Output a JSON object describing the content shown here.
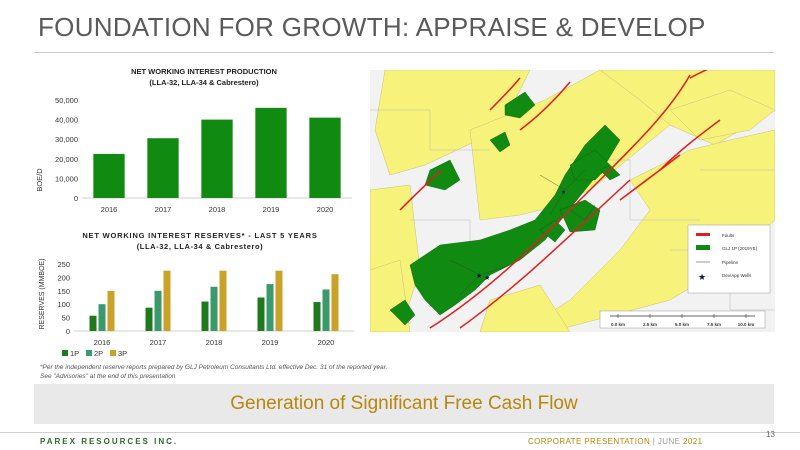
{
  "page": {
    "title": "FOUNDATION FOR GROWTH: APPRAISE & DEVELOP",
    "footnote_line1": "*Per the independent reserve reports prepared by GLJ Petroleum Consultants Ltd. effective Dec. 31 of the reported year.",
    "footnote_line2": "See \"Advisories\" at the end of this presentation",
    "banner": "Generation of Significant Free Cash Flow",
    "brand": "PAREX RESOURCES INC.",
    "corp_label": "CORPORATE PRESENTATION",
    "corp_sep": "|",
    "corp_month": "JUNE",
    "corp_year": "2021",
    "page_number": "13"
  },
  "colors": {
    "production_bar": "#118a11",
    "reserves_1p": "#1d7a1d",
    "reserves_2p": "#3a9a6e",
    "reserves_3p": "#c9a227",
    "banner_text": "#b8860b"
  },
  "chart_data": [
    {
      "type": "bar",
      "title": "NET WORKING INTEREST PRODUCTION",
      "subtitle": "(LLA-32, LLA-34 & Cabrestero)",
      "ylabel": "BOE/D",
      "categories": [
        "2016",
        "2017",
        "2018",
        "2019",
        "2020"
      ],
      "values": [
        22500,
        30500,
        40000,
        46000,
        41000
      ],
      "ylim": [
        0,
        50000
      ],
      "yticks": [
        "0",
        "10,000",
        "20,000",
        "30,000",
        "40,000",
        "50,000"
      ],
      "grid": false
    },
    {
      "type": "bar",
      "title": "NET WORKING INTEREST RESERVES* - LAST 5 YEARS",
      "subtitle": "(LLA-32, LLA-34 & Cabrestero)",
      "ylabel": "RESERVES (MMBOE)",
      "categories": [
        "2016",
        "2017",
        "2018",
        "2019",
        "2020"
      ],
      "series": [
        {
          "name": "1P",
          "values": [
            57,
            87,
            110,
            125,
            108
          ]
        },
        {
          "name": "2P",
          "values": [
            100,
            150,
            165,
            175,
            155
          ]
        },
        {
          "name": "3P",
          "values": [
            150,
            225,
            225,
            225,
            212
          ]
        }
      ],
      "ylim": [
        0,
        250
      ],
      "yticks": [
        "0",
        "50",
        "100",
        "150",
        "200",
        "250"
      ],
      "legend": "bottom-left",
      "grid": false
    }
  ],
  "map": {
    "legend": {
      "faults": "Faults",
      "glj": "GLJ 1P (2019YE)",
      "pipeline": "Pipeline",
      "wells": "Dev/App Wells"
    },
    "scale_labels": [
      "0.0 km",
      "2.5 km",
      "5.0 km",
      "7.5 km",
      "10.0 km"
    ]
  }
}
